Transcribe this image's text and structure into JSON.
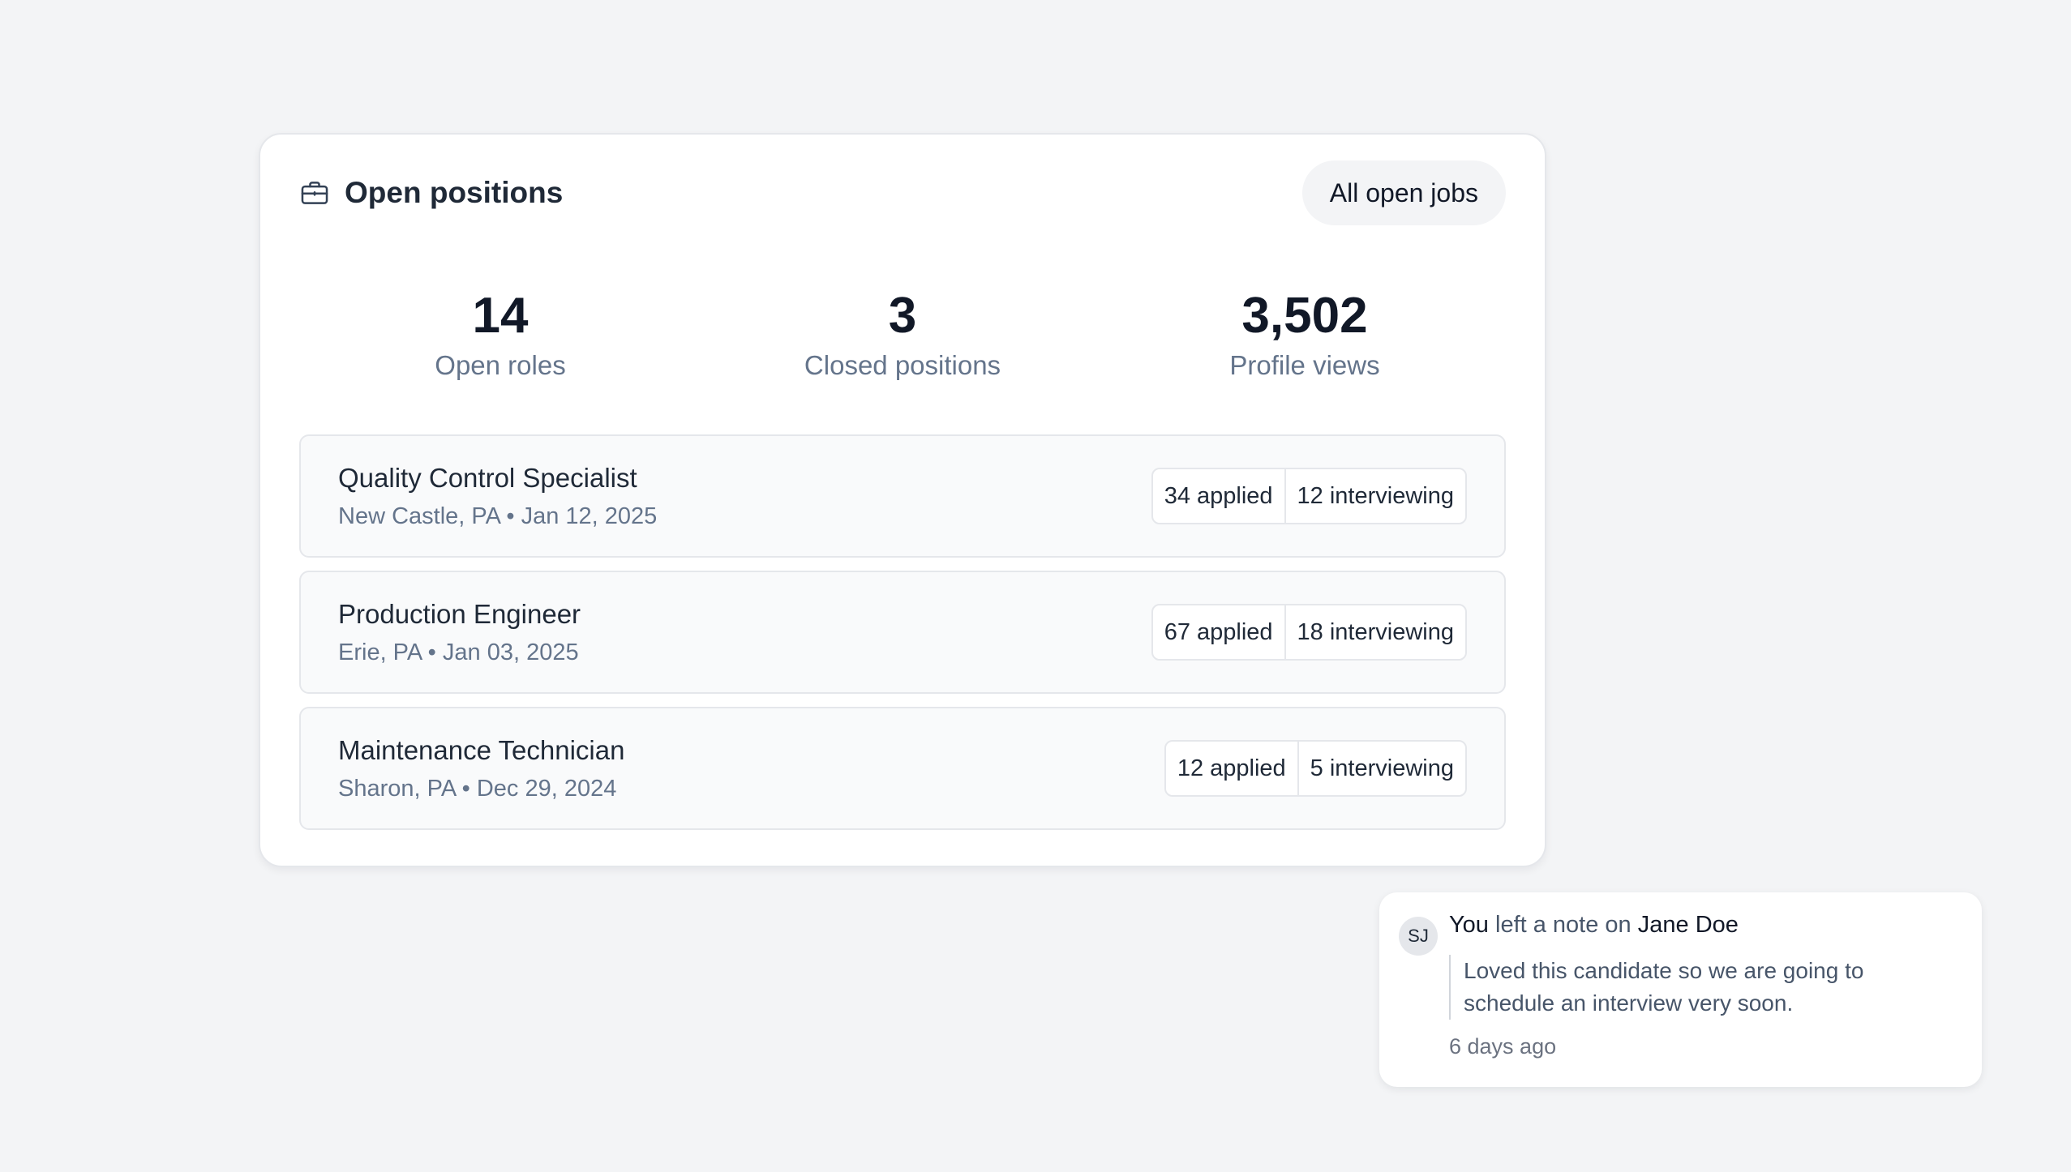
{
  "card": {
    "title": "Open positions",
    "icon": "briefcase-icon",
    "all_jobs_label": "All open jobs"
  },
  "stats": [
    {
      "value": "14",
      "label": "Open roles"
    },
    {
      "value": "3",
      "label": "Closed positions"
    },
    {
      "value": "3,502",
      "label": "Profile views"
    }
  ],
  "jobs": [
    {
      "title": "Quality Control Specialist",
      "meta": "New Castle, PA • Jan 12, 2025",
      "applied": "34 applied",
      "interviewing": "12 interviewing"
    },
    {
      "title": "Production Engineer",
      "meta": "Erie, PA • Jan 03, 2025",
      "applied": "67 applied",
      "interviewing": "18 interviewing"
    },
    {
      "title": "Maintenance Technician",
      "meta": "Sharon, PA • Dec 29, 2024",
      "applied": "12 applied",
      "interviewing": "5 interviewing"
    }
  ],
  "note": {
    "avatar_initials": "SJ",
    "actor": "You",
    "action": "left a note on",
    "subject": "Jane Doe",
    "text": "Loved this candidate so we are going to schedule an interview very soon.",
    "time": "6 days ago"
  }
}
